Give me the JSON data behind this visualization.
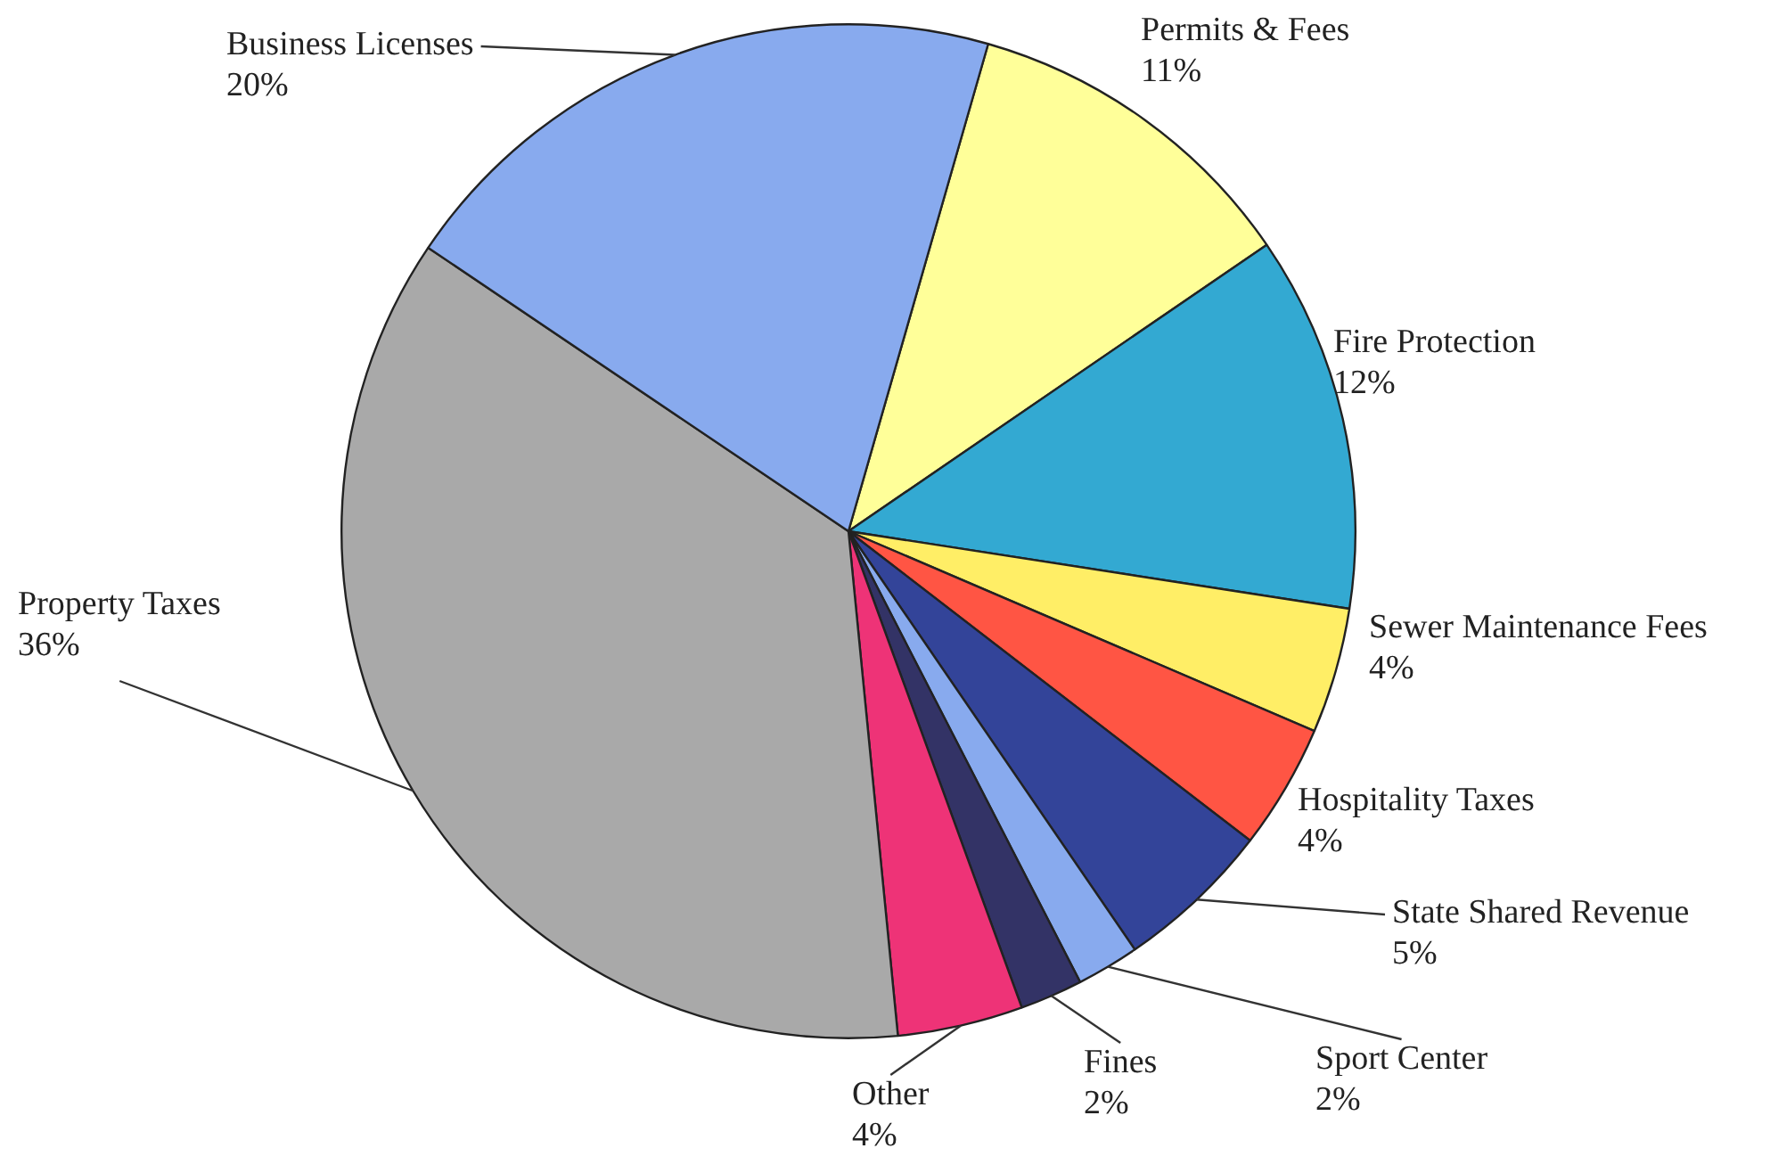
{
  "chart_data": {
    "type": "pie",
    "categories": [
      "Permits & Fees",
      "Fire Protection",
      "Sewer Maintenance Fees",
      "Hospitality Taxes",
      "State Shared Revenue",
      "Sport Center",
      "Fines",
      "Other",
      "Property Taxes",
      "Business Licenses"
    ],
    "values": [
      11,
      12,
      4,
      4,
      5,
      2,
      2,
      4,
      36,
      20
    ],
    "colors": [
      "#ffff99",
      "#33a9d2",
      "#ffee66",
      "#ff5544",
      "#334499",
      "#88aaee",
      "#333366",
      "#ee3377",
      "#a9a9a9",
      "#88aaee"
    ],
    "value_labels": [
      "11%",
      "12%",
      "4%",
      "4%",
      "5%",
      "2%",
      "2%",
      "4%",
      "36%",
      "20%"
    ],
    "legend": false
  }
}
